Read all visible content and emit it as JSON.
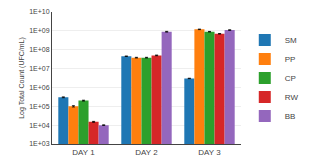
{
  "chart_data": {
    "type": "bar",
    "categories": [
      "DAY 1",
      "DAY 2",
      "DAY 3"
    ],
    "series": [
      {
        "name": "SM",
        "values": [
          300000,
          45000000,
          3000000
        ],
        "errors": [
          15000,
          1500000,
          80000
        ]
      },
      {
        "name": "PP",
        "values": [
          100000,
          38000000,
          1200000000
        ],
        "errors": [
          8000,
          1500000,
          40000000
        ]
      },
      {
        "name": "CP",
        "values": [
          200000,
          38000000,
          900000000
        ],
        "errors": [
          10000,
          1500000,
          30000000
        ]
      },
      {
        "name": "RW",
        "values": [
          15000,
          50000000,
          700000000
        ],
        "errors": [
          800,
          2000000,
          20000000
        ]
      },
      {
        "name": "BB",
        "values": [
          10000,
          900000000,
          1100000000
        ],
        "errors": [
          400,
          40000000,
          40000000
        ]
      }
    ],
    "ylabel": "Log Total Count (UFC/mL)",
    "ylim": [
      1000,
      10000000000
    ],
    "yticks": [
      {
        "value": 1000,
        "label": "1E+03"
      },
      {
        "value": 10000,
        "label": "1E+04"
      },
      {
        "value": 100000,
        "label": "1E+05"
      },
      {
        "value": 1000000,
        "label": "1E+06"
      },
      {
        "value": 10000000,
        "label": "1E+07"
      },
      {
        "value": 100000000,
        "label": "1E+08"
      },
      {
        "value": 1000000000,
        "label": "1E+09"
      },
      {
        "value": 10000000000,
        "label": "1E+10"
      }
    ],
    "log": "y",
    "grid": true,
    "legend": "right"
  }
}
